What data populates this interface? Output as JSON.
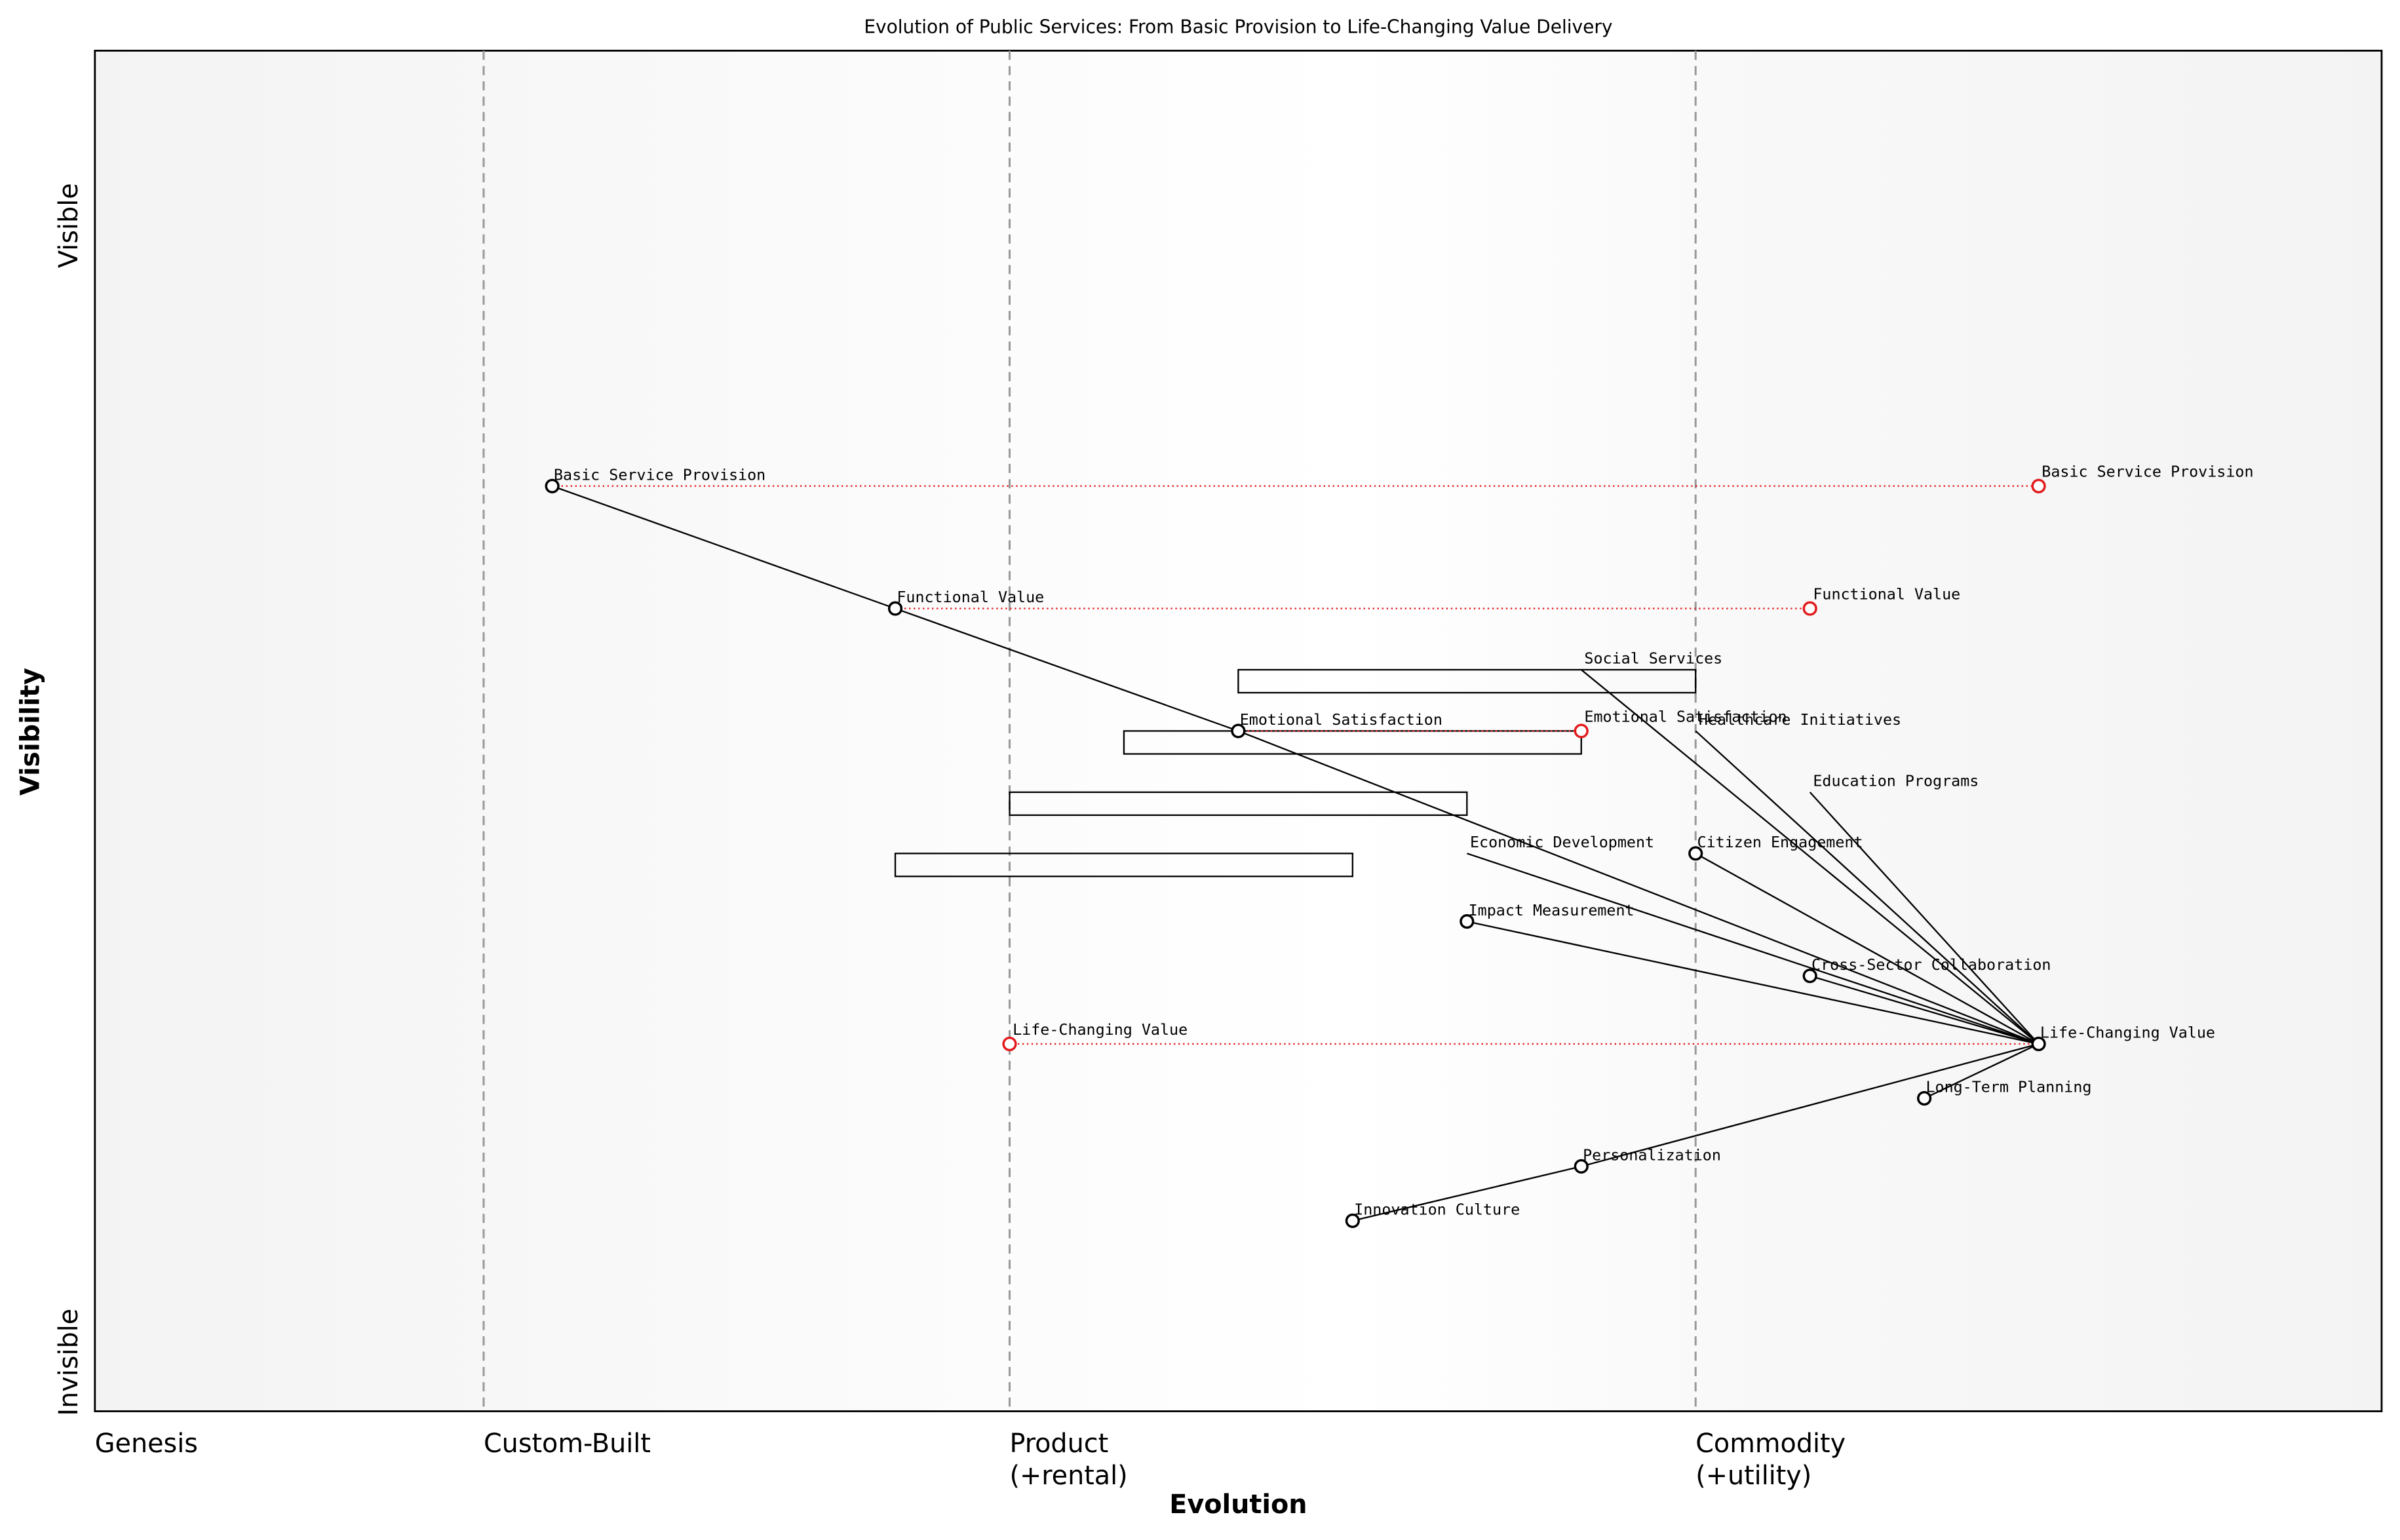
{
  "chart_data": {
    "type": "wardley",
    "title": "Evolution of Public Services: From Basic Provision to Life-Changing Value Delivery",
    "xlabel": "Evolution",
    "ylabel": "Visibility",
    "visible_label": "Visible",
    "invisible_label": "Invisible",
    "xlim": [
      0,
      1
    ],
    "ylim": [
      0,
      1
    ],
    "xticks": [
      {
        "value": 0,
        "label": [
          "Genesis"
        ]
      },
      {
        "value": 0.17,
        "label": [
          "Custom-Built"
        ]
      },
      {
        "value": 0.4,
        "label": [
          "Product",
          "(+rental)"
        ]
      },
      {
        "value": 0.7,
        "label": [
          "Commodity",
          "(+utility)"
        ]
      }
    ],
    "components": [
      {
        "name": "Basic Service Provision",
        "evolution": 0.2,
        "visibility": 0.68
      },
      {
        "name": "Functional Value",
        "evolution": 0.35,
        "visibility": 0.59
      },
      {
        "name": "Emotional Satisfaction",
        "evolution": 0.5,
        "visibility": 0.5
      },
      {
        "name": "Citizen Engagement",
        "evolution": 0.7,
        "visibility": 0.41
      },
      {
        "name": "Impact Measurement",
        "evolution": 0.6,
        "visibility": 0.36
      },
      {
        "name": "Cross-Sector Collaboration",
        "evolution": 0.75,
        "visibility": 0.32
      },
      {
        "name": "Life-Changing Value",
        "evolution": 0.85,
        "visibility": 0.27
      },
      {
        "name": "Long-Term Planning",
        "evolution": 0.8,
        "visibility": 0.23
      },
      {
        "name": "Personalization",
        "evolution": 0.65,
        "visibility": 0.18
      },
      {
        "name": "Innovation Culture",
        "evolution": 0.55,
        "visibility": 0.14
      }
    ],
    "pipelines": [
      {
        "name": "Social Services",
        "evolution": 0.65,
        "visibility": 0.545,
        "start": 0.5,
        "end": 0.7
      },
      {
        "name": "Healthcare Initiatives",
        "evolution": 0.7,
        "visibility": 0.5,
        "start": 0.45,
        "end": 0.65
      },
      {
        "name": "Education Programs",
        "evolution": 0.75,
        "visibility": 0.455,
        "start": 0.4,
        "end": 0.6
      },
      {
        "name": "Economic Development",
        "evolution": 0.6,
        "visibility": 0.41,
        "start": 0.35,
        "end": 0.55
      }
    ],
    "evolve": [
      {
        "name": "Basic Service Provision",
        "to": 0.85
      },
      {
        "name": "Functional Value",
        "to": 0.75
      },
      {
        "name": "Emotional Satisfaction",
        "to": 0.65
      },
      {
        "name": "Life-Changing Value",
        "to": 0.4
      }
    ],
    "links": [
      {
        "from": "Basic Service Provision",
        "to": "Functional Value"
      },
      {
        "from": "Functional Value",
        "to": "Emotional Satisfaction"
      },
      {
        "from": "Emotional Satisfaction",
        "to": "Life-Changing Value"
      },
      {
        "from": "Social Services",
        "to": "Life-Changing Value"
      },
      {
        "from": "Healthcare Initiatives",
        "to": "Life-Changing Value"
      },
      {
        "from": "Education Programs",
        "to": "Life-Changing Value"
      },
      {
        "from": "Economic Development",
        "to": "Life-Changing Value"
      },
      {
        "from": "Citizen Engagement",
        "to": "Life-Changing Value"
      },
      {
        "from": "Impact Measurement",
        "to": "Life-Changing Value"
      },
      {
        "from": "Cross-Sector Collaboration",
        "to": "Life-Changing Value"
      },
      {
        "from": "Life-Changing Value",
        "to": "Long-Term Planning"
      },
      {
        "from": "Life-Changing Value",
        "to": "Personalization"
      },
      {
        "from": "Personalization",
        "to": "Innovation Culture"
      }
    ],
    "evolve_color": "#e31a1c",
    "component_color": "#000000"
  }
}
